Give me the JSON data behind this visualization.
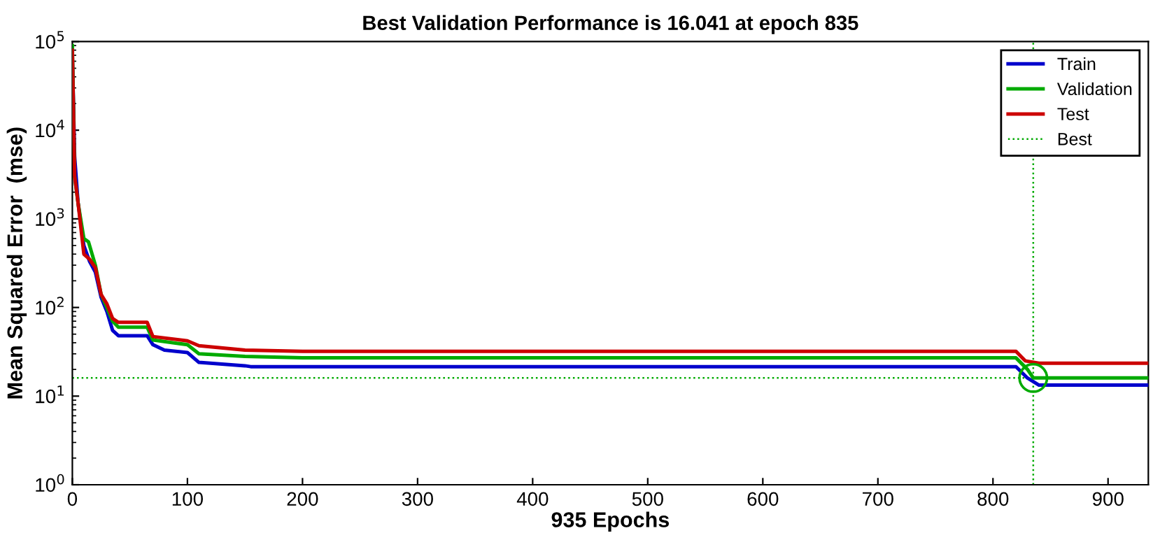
{
  "chart_data": {
    "type": "line",
    "title": "Best Validation Performance is 16.041 at epoch 835",
    "xlabel": "935 Epochs",
    "ylabel": "Mean Squared Error  (mse)",
    "series": [
      {
        "name": "Train",
        "color": "#0000cc",
        "x": [
          0,
          2,
          5,
          10,
          15,
          20,
          25,
          30,
          35,
          40,
          65,
          70,
          80,
          100,
          110,
          150,
          155,
          820,
          830,
          840,
          935
        ],
        "values": [
          70000,
          5000,
          1500,
          500,
          330,
          250,
          130,
          90,
          55,
          48,
          48,
          38,
          33,
          31,
          24,
          22,
          21.5,
          21.5,
          16,
          13.3,
          13.3
        ]
      },
      {
        "name": "Validation",
        "color": "#00aa00",
        "x": [
          0,
          2,
          5,
          10,
          14,
          20,
          25,
          30,
          35,
          40,
          65,
          70,
          100,
          110,
          150,
          200,
          820,
          830,
          835,
          935
        ],
        "values": [
          90000,
          3000,
          1500,
          600,
          550,
          300,
          140,
          100,
          70,
          60,
          60,
          43,
          38,
          30,
          28,
          27,
          27,
          20,
          16.041,
          16.041
        ]
      },
      {
        "name": "Test",
        "color": "#cc0000",
        "x": [
          0,
          2,
          5,
          10,
          15,
          20,
          25,
          30,
          35,
          40,
          65,
          70,
          100,
          110,
          150,
          200,
          820,
          828,
          840,
          935
        ],
        "values": [
          80000,
          3000,
          1500,
          400,
          350,
          280,
          140,
          110,
          75,
          68,
          68,
          47,
          42,
          37,
          33,
          32,
          32,
          25,
          23.5,
          23.5
        ]
      },
      {
        "type": "scatter",
        "color": "#00aa00",
        "marker": "circle",
        "x": [
          835
        ],
        "values": [
          16.041
        ]
      }
    ],
    "ref_lines": [
      {
        "axis": "x",
        "value": 835,
        "label": "Best",
        "color": "#00aa00",
        "line_style": "dotted"
      },
      {
        "axis": "y",
        "value": 16.041,
        "color": "#00aa00",
        "line_style": "dotted"
      }
    ],
    "xlim": [
      0,
      935
    ],
    "xticks": [
      0,
      100,
      200,
      300,
      400,
      500,
      600,
      700,
      800,
      900
    ],
    "log": "y",
    "ylim": [
      1,
      100000
    ],
    "yticks": [
      {
        "value": 1,
        "label": "10$^{0}$"
      },
      {
        "value": 10,
        "label": "10$^{1}$"
      },
      {
        "value": 100,
        "label": "10$^{2}$"
      },
      {
        "value": 1000,
        "label": "10$^{3}$"
      },
      {
        "value": 10000,
        "label": "10$^{4}$"
      },
      {
        "value": 100000,
        "label": "10$^{5}$"
      }
    ],
    "grid": false,
    "legend": "top right",
    "marker": "none",
    "line_style": "solid"
  }
}
